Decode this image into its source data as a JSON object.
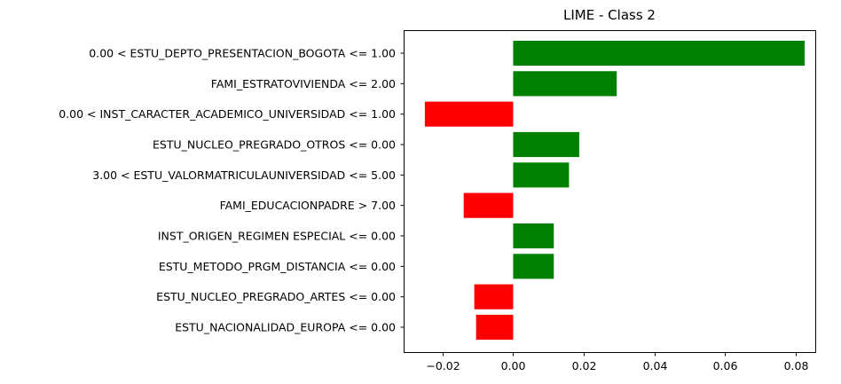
{
  "chart_data": {
    "type": "bar",
    "orientation": "horizontal",
    "title": "LIME - Class 2",
    "xlabel": "",
    "ylabel": "",
    "xlim": [
      -0.031,
      0.0855
    ],
    "xticks": [
      -0.02,
      0.0,
      0.02,
      0.04,
      0.06,
      0.08
    ],
    "xtick_labels": [
      "−0.02",
      "0.00",
      "0.02",
      "0.04",
      "0.06",
      "0.08"
    ],
    "grid": false,
    "positive_color": "#008000",
    "negative_color": "#ff0000",
    "categories": [
      "0.00 < ESTU_DEPTO_PRESENTACION_BOGOTA <= 1.00",
      "FAMI_ESTRATOVIVIENDA <= 2.00",
      "0.00 < INST_CARACTER_ACADEMICO_UNIVERSIDAD <= 1.00",
      "ESTU_NUCLEO_PREGRADO_OTROS <= 0.00",
      "3.00 < ESTU_VALORMATRICULAUNIVERSIDAD <= 5.00",
      "FAMI_EDUCACIONPADRE > 7.00",
      "INST_ORIGEN_REGIMEN ESPECIAL <= 0.00",
      "ESTU_METODO_PRGM_DISTANCIA <= 0.00",
      "ESTU_NUCLEO_PREGRADO_ARTES <= 0.00",
      "ESTU_NACIONALIDAD_EUROPA <= 0.00"
    ],
    "values": [
      0.0825,
      0.0293,
      -0.025,
      0.0187,
      0.0158,
      -0.014,
      0.0115,
      0.0115,
      -0.011,
      -0.0105
    ]
  }
}
